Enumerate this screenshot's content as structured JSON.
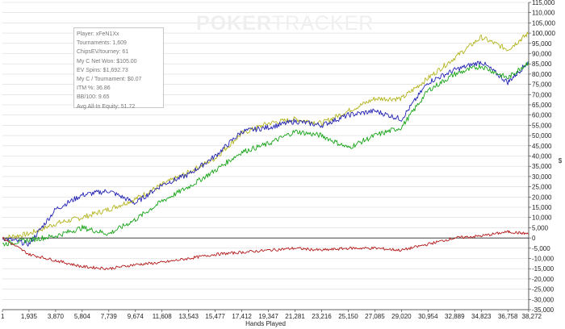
{
  "logo": {
    "part1": "POKER",
    "part2": "TRACKER"
  },
  "stats": [
    "Player: xFeN1Xx",
    "Tournaments: 1,609",
    "ChipsEV/tourney: 61",
    "My C Net Won: $105.00",
    "EV Spins: $1,692.73",
    "My C / Tournament: $0.07",
    "ITM %: 36.86",
    "BB/100: 9.65",
    "Avg All-In Equity: 51.72"
  ],
  "colors": {
    "olive": "#b4b41e",
    "blue": "#2323b4",
    "green": "#19a519",
    "red": "#b41919",
    "grid": "#d8d8d8",
    "zero": "#000000"
  },
  "chart_data": {
    "type": "line",
    "xlabel": "Hands Played",
    "ylabel": "$",
    "xlim": [
      1,
      38272
    ],
    "ylim": [
      -35000,
      115000
    ],
    "x_ticks": [
      "1",
      "1,935",
      "3,870",
      "5,804",
      "7,739",
      "9,674",
      "11,608",
      "13,543",
      "15,477",
      "17,412",
      "19,347",
      "21,281",
      "23,216",
      "25,150",
      "27,085",
      "29,020",
      "30,954",
      "32,889",
      "34,823",
      "36,758",
      "38,272"
    ],
    "y_ticks": [
      "-35,000",
      "-30,000",
      "-25,000",
      "-20,000",
      "-15,000",
      "-10,000",
      "-5,000",
      "0",
      "5,000",
      "10,000",
      "15,000",
      "20,000",
      "25,000",
      "30,000",
      "35,000",
      "40,000",
      "45,000",
      "50,000",
      "55,000",
      "60,000",
      "65,000",
      "70,000",
      "75,000",
      "80,000",
      "85,000",
      "90,000",
      "95,000",
      "100,000",
      "105,000",
      "110,000",
      "115,000"
    ],
    "grid": true,
    "series": [
      {
        "color": "olive",
        "x": [
          1,
          1935,
          3870,
          5804,
          7739,
          9674,
          11608,
          13543,
          15477,
          17412,
          19347,
          21281,
          23216,
          25150,
          27085,
          29020,
          30954,
          32889,
          34823,
          36758,
          38272
        ],
        "y": [
          0,
          2000,
          7000,
          10000,
          14000,
          19000,
          26000,
          32000,
          39000,
          51000,
          56000,
          58000,
          56000,
          62000,
          68000,
          68000,
          78000,
          88000,
          98000,
          92000,
          100000
        ]
      },
      {
        "color": "blue",
        "x": [
          1,
          1935,
          3870,
          5804,
          7739,
          9674,
          11608,
          13543,
          15477,
          17412,
          19347,
          21281,
          23216,
          25150,
          27085,
          29020,
          30954,
          32889,
          34823,
          36758,
          38272
        ],
        "y": [
          0,
          -3000,
          14000,
          21000,
          23000,
          17000,
          26000,
          31000,
          40000,
          52000,
          54000,
          57000,
          55000,
          60000,
          62000,
          58000,
          76000,
          82000,
          86000,
          76000,
          86000
        ]
      },
      {
        "color": "green",
        "x": [
          1,
          1935,
          3870,
          5804,
          7739,
          9674,
          11608,
          13543,
          15477,
          17412,
          19347,
          21281,
          23216,
          25150,
          27085,
          29020,
          30954,
          32889,
          34823,
          36758,
          38272
        ],
        "y": [
          -3000,
          -1000,
          1000,
          5000,
          2000,
          9000,
          18000,
          25000,
          33000,
          42000,
          46000,
          52000,
          50000,
          44000,
          50000,
          54000,
          72000,
          80000,
          84000,
          78000,
          86000
        ]
      },
      {
        "color": "red",
        "x": [
          1,
          1935,
          3870,
          5804,
          7739,
          9674,
          11608,
          13543,
          15477,
          17412,
          19347,
          21281,
          23216,
          25150,
          27085,
          29020,
          30954,
          32889,
          34823,
          36758,
          38272
        ],
        "y": [
          0,
          -8000,
          -11000,
          -14000,
          -15000,
          -13000,
          -12000,
          -10000,
          -8000,
          -7000,
          -6000,
          -5000,
          -6000,
          -5000,
          -5000,
          -6000,
          -3000,
          0,
          1000,
          3000,
          2000
        ]
      }
    ]
  }
}
